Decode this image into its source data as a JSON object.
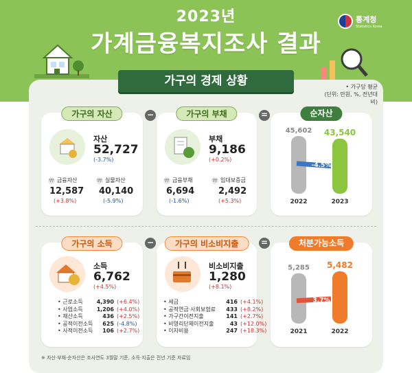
{
  "header": {
    "year_title": "2023년",
    "main_title": "가계금융복지조사 결과",
    "logo_ko": "통계청",
    "logo_en": "Statistics Korea",
    "section_banner": "가구의 경제 상황",
    "note_line1": "• 가구당 평균",
    "note_line2": "(단위: 만원, %, 전년대비)"
  },
  "assets": {
    "pill": "가구의 자산",
    "label": "자산",
    "value": "52,727",
    "change": "(-3.7%)",
    "sub1_label": "금융자산",
    "sub1_value": "12,587",
    "sub1_change": "(+3.8%)",
    "sub2_label": "실물자산",
    "sub2_value": "40,140",
    "sub2_change": "(-5.9%)"
  },
  "debt": {
    "pill": "가구의 부채",
    "label": "부채",
    "value": "9,186",
    "change": "(+0.2%)",
    "sub1_label": "금융부채",
    "sub1_value": "6,694",
    "sub1_change": "(-1.6%)",
    "sub2_label": "임대보증금",
    "sub2_value": "2,492",
    "sub2_change": "(+5.3%)"
  },
  "operators": {
    "minus": "−",
    "equals": "="
  },
  "net_assets": {
    "pill": "순자산",
    "change_label": "-4.5%"
  },
  "income": {
    "pill": "가구의 소득",
    "label": "소득",
    "value": "6,762",
    "change": "(+4.5%)",
    "items": [
      {
        "name": "근로소득",
        "value": "4,390",
        "change": "(+6.4%)",
        "neg": false
      },
      {
        "name": "사업소득",
        "value": "1,206",
        "change": "(+4.0%)",
        "neg": false
      },
      {
        "name": "재산소득",
        "value": "436",
        "change": "(+2.5%)",
        "neg": false
      },
      {
        "name": "공적이전소득",
        "value": "625",
        "change": "(-4.8%)",
        "neg": true
      },
      {
        "name": "사적이전소득",
        "value": "106",
        "change": "(+2.7%)",
        "neg": false
      }
    ]
  },
  "nonconsumption": {
    "pill": "가구의 비소비지출",
    "label": "비소비지출",
    "value": "1,280",
    "change": "(+8.1%)",
    "items": [
      {
        "name": "세금",
        "value": "416",
        "change": "(+4.1%)"
      },
      {
        "name": "공적연금·사회보험료",
        "value": "433",
        "change": "(+8.2%)"
      },
      {
        "name": "가구간이전지출",
        "value": "141",
        "change": "(+2.7%)"
      },
      {
        "name": "비영리단체이전지출",
        "value": "43",
        "change": "(+12.0%)"
      },
      {
        "name": "이자비용",
        "value": "247",
        "change": "(+18.3%)"
      }
    ]
  },
  "disposable": {
    "pill": "처분가능소득",
    "change_label": "3.7%"
  },
  "chart_data": [
    {
      "type": "bar",
      "categories": [
        "2022",
        "2023"
      ],
      "values": [
        45602,
        43540
      ],
      "data_labels": [
        "45,602",
        "43,540"
      ],
      "colors": [
        "#b8b8b8",
        "#8cc63f"
      ]
    },
    {
      "type": "bar",
      "categories": [
        "2021",
        "2022"
      ],
      "values": [
        5285,
        5482
      ],
      "data_labels": [
        "5,285",
        "5,482"
      ],
      "colors": [
        "#b8b8b8",
        "#f07b2b"
      ]
    }
  ],
  "footnote": "※ 자산·부채·순자산은 조사연도 3월말 기준, 소득·지출은 전년 기준 자료임"
}
